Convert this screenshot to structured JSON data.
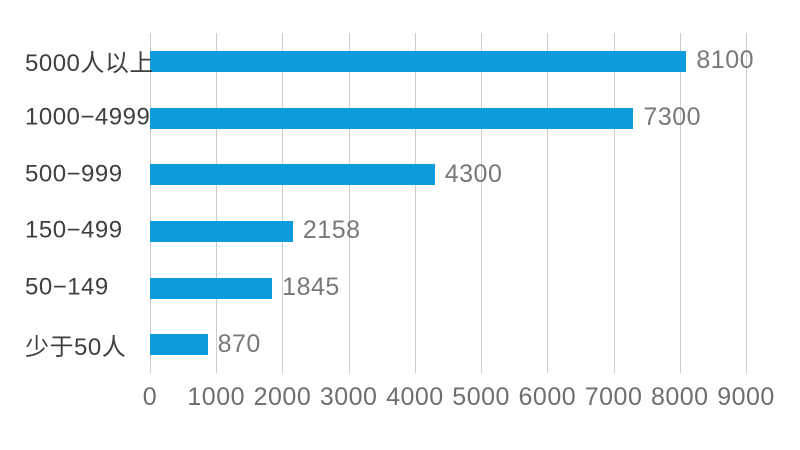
{
  "chart_data": {
    "type": "bar",
    "orientation": "horizontal",
    "title": "",
    "xlabel": "",
    "ylabel": "",
    "categories": [
      "5000人以上",
      "1000−4999",
      "500−999",
      "150−499",
      "50−149",
      "少于50人"
    ],
    "values": [
      8100,
      7300,
      4300,
      2158,
      1845,
      870
    ],
    "value_labels": [
      "8100",
      "7300",
      "4300",
      "2158",
      "1845",
      "870"
    ],
    "x_ticks": [
      0,
      1000,
      2000,
      3000,
      4000,
      5000,
      6000,
      7000,
      8000,
      9000
    ],
    "x_tick_labels": [
      "0",
      "1000",
      "2000",
      "3000",
      "4000",
      "5000",
      "6000",
      "7000",
      "8000",
      "9000"
    ],
    "xlim": [
      0,
      9000
    ],
    "grid": "vertical-only",
    "legend": "none",
    "colors": {
      "bar": "#0d9cdb",
      "gridline": "#cccccc",
      "category_label": "#3f3f3f",
      "value_label": "#787878",
      "tick_label": "#6e6e6e",
      "background": "#ffffff"
    }
  }
}
